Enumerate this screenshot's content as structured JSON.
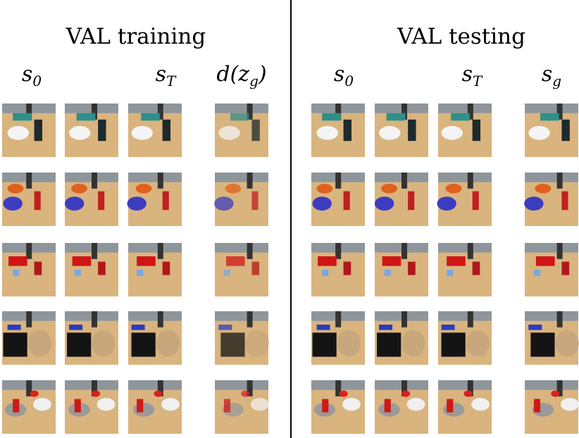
{
  "panels": [
    {
      "title": "VAL training",
      "headers": [
        {
          "base": "s",
          "sub": "0"
        },
        {
          "base": "s",
          "sub": "T"
        },
        {
          "base": "d(z",
          "sub": "g",
          "tail": ")"
        }
      ]
    },
    {
      "title": "VAL testing",
      "headers": [
        {
          "base": "s",
          "sub": "0"
        },
        {
          "base": "s",
          "sub": "T"
        },
        {
          "base": "s",
          "sub": "g"
        }
      ]
    }
  ]
}
